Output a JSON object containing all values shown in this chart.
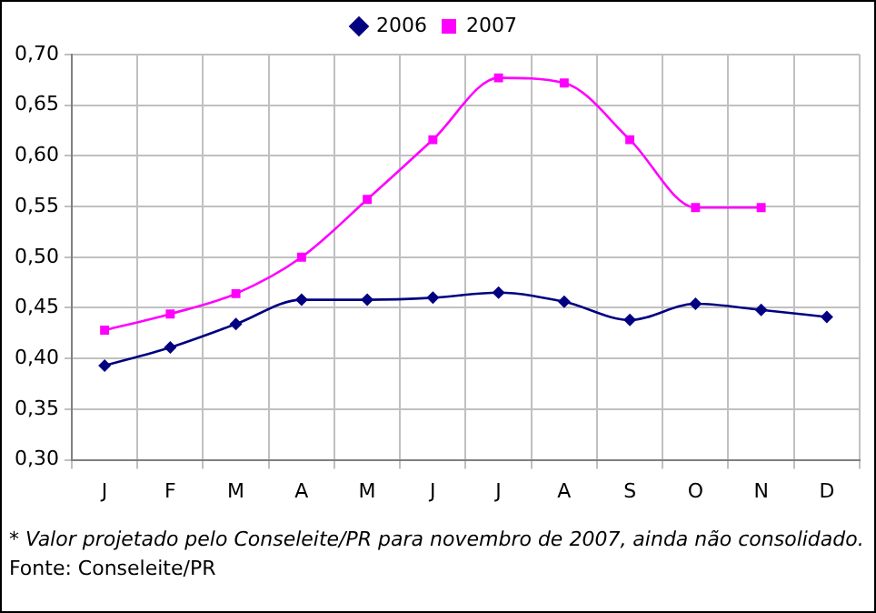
{
  "chart_data": {
    "type": "line",
    "categories": [
      "J",
      "F",
      "M",
      "A",
      "M",
      "J",
      "J",
      "A",
      "S",
      "O",
      "N",
      "D"
    ],
    "series": [
      {
        "name": "2006",
        "color": "#000080",
        "marker": "diamond",
        "values": [
          0.393,
          0.411,
          0.434,
          0.458,
          0.458,
          0.46,
          0.465,
          0.456,
          0.438,
          0.454,
          0.448,
          0.441
        ]
      },
      {
        "name": "2007",
        "color": "#ff00ff",
        "marker": "square",
        "values": [
          0.428,
          0.444,
          0.464,
          0.5,
          0.557,
          0.616,
          0.677,
          0.672,
          0.616,
          0.549,
          0.549,
          null
        ]
      }
    ],
    "ylim": [
      0.3,
      0.7
    ],
    "yticks": [
      {
        "value": 0.3,
        "label": "0,30"
      },
      {
        "value": 0.35,
        "label": "0,35"
      },
      {
        "value": 0.4,
        "label": "0,40"
      },
      {
        "value": 0.45,
        "label": "0,45"
      },
      {
        "value": 0.5,
        "label": "0,50"
      },
      {
        "value": 0.55,
        "label": "0,55"
      },
      {
        "value": 0.6,
        "label": "0,60"
      },
      {
        "value": 0.65,
        "label": "0,65"
      },
      {
        "value": 0.7,
        "label": "0,70"
      }
    ],
    "grid": true,
    "legend": "top",
    "line_style": "solid",
    "annotations": [
      "* Valor projetado pelo Conseleite/PR para novembro de 2007, ainda não consolidado.",
      "Fonte: Conseleite/PR"
    ]
  }
}
